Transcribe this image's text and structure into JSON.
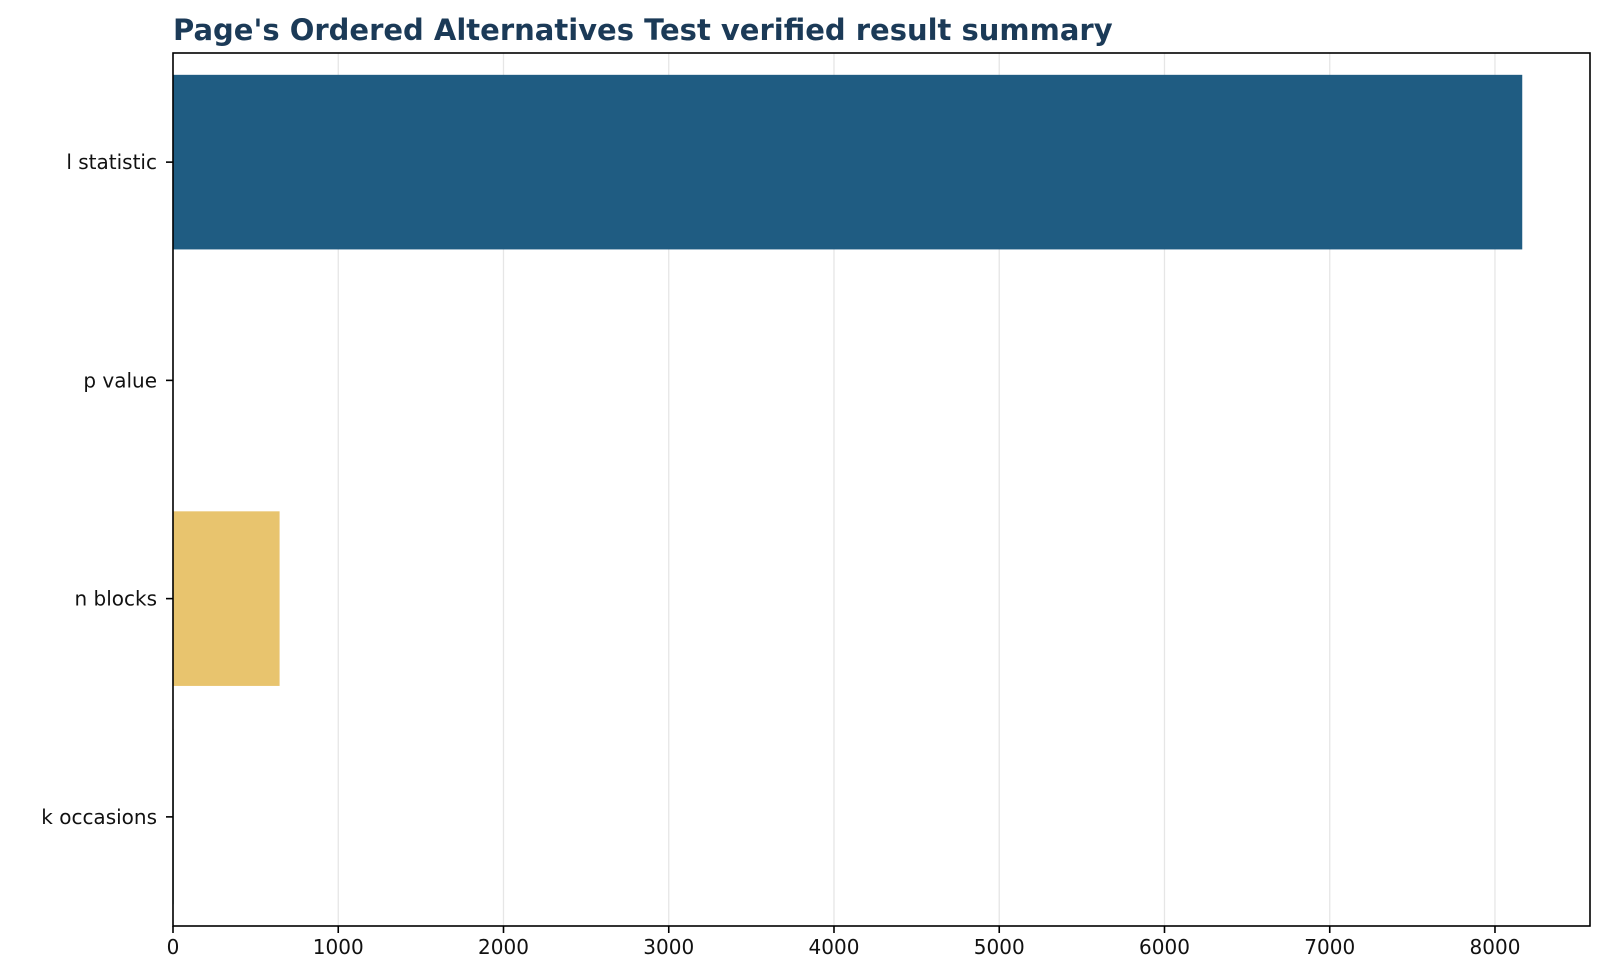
{
  "chart_data": {
    "type": "bar",
    "orientation": "horizontal",
    "title": "Page's Ordered Alternatives Test verified result summary",
    "xlabel": "",
    "ylabel": "",
    "categories": [
      "l statistic",
      "p value",
      "n blocks",
      "k occasions"
    ],
    "values": [
      8165,
      0.0,
      645,
      4
    ],
    "xlim": [
      0,
      8575
    ],
    "xticks": [
      0,
      1000,
      2000,
      3000,
      4000,
      5000,
      6000,
      7000,
      8000
    ],
    "bar_colors": [
      "#1f5c82",
      "#d4694a",
      "#e8c46e",
      "#3a8c7e"
    ],
    "grid": "vertical",
    "legend": "none"
  },
  "colors": {
    "title": "#1b3a57",
    "grid": "#e6e6e6",
    "axis": "#000000"
  }
}
